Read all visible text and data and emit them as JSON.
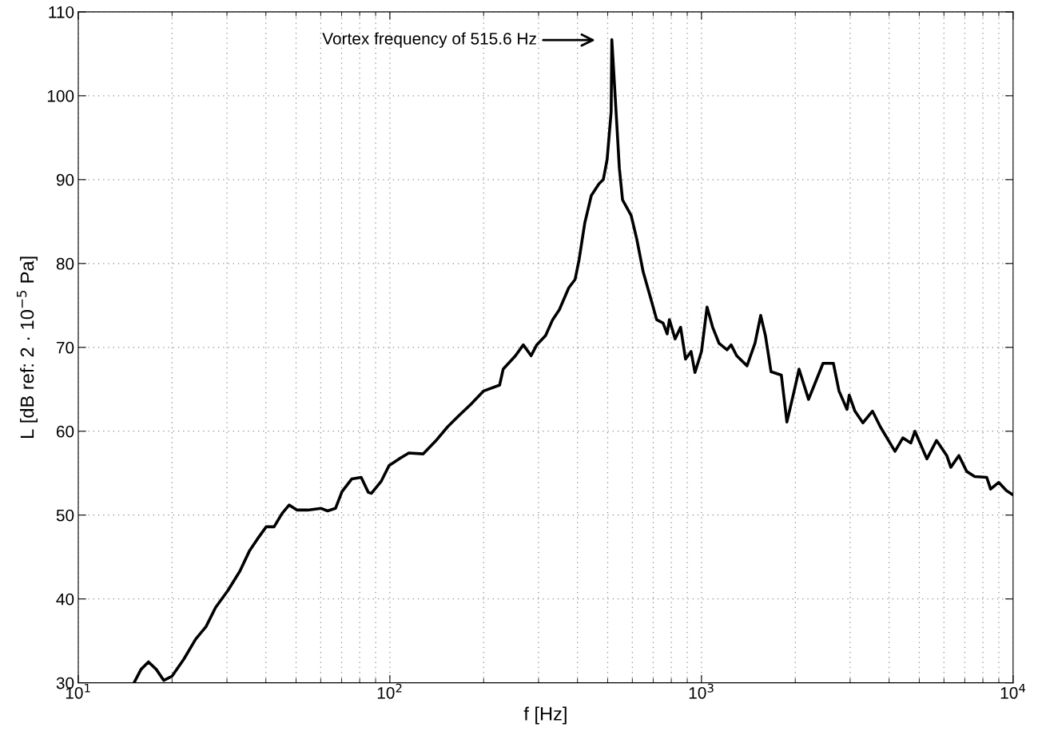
{
  "chart_data": {
    "type": "line",
    "xlabel": "f [Hz]",
    "ylabel": "L [dB ref: 2 · 10$^{−5}$ Pa]",
    "log": "x",
    "grid": true,
    "marker": "none",
    "line_style": "solid",
    "xlim": [
      10,
      10000
    ],
    "ylim": [
      30,
      110
    ],
    "xticks": [
      {
        "value": 10,
        "label": "10$^{1}$"
      },
      {
        "value": 100,
        "label": "10$^{2}$"
      },
      {
        "value": 1000,
        "label": "10$^{3}$"
      },
      {
        "value": 10000,
        "label": "10$^{4}$"
      }
    ],
    "yticks": [
      30,
      40,
      50,
      60,
      70,
      80,
      90,
      100,
      110
    ],
    "annotations": [
      "Vortex frequency of 515.6 Hz"
    ],
    "series": [
      {
        "color": "#000000",
        "x": [
          15.1,
          15.9,
          16.8,
          17.8,
          18.8,
          20.0,
          21.8,
          23.8,
          25.7,
          27.6,
          30.2,
          33.0,
          35.4,
          37.5,
          40.1,
          42.5,
          45.1,
          47.5,
          50.4,
          54.5,
          60.2,
          63.1,
          66.9,
          70.2,
          75.4,
          80.9,
          85.3,
          87.3,
          93.7,
          99.4,
          107,
          115,
          128,
          140,
          153,
          167,
          183,
          200,
          225,
          231,
          253,
          268,
          284,
          296,
          316,
          333,
          350,
          375,
          393,
          405,
          422,
          443,
          469,
          484,
          498,
          513,
          515.6,
          532,
          545,
          558,
          595,
          620,
          650,
          689,
          718,
          753,
          776,
          789,
          823,
          857,
          889,
          926,
          953,
          1000,
          1042,
          1086,
          1138,
          1208,
          1245,
          1297,
          1400,
          1485,
          1549,
          1604,
          1672,
          1804,
          1880,
          1995,
          2056,
          2206,
          2455,
          2650,
          2763,
          2931,
          2980,
          3107,
          3296,
          3538,
          3753,
          4178,
          4428,
          4698,
          4840,
          5289,
          5678,
          6125,
          6310,
          6700,
          7100,
          7530,
          8230,
          8470,
          8990,
          9530,
          10000
        ],
        "values": [
          30.0,
          31.6,
          32.5,
          31.6,
          30.3,
          30.8,
          32.8,
          35.2,
          36.7,
          39.0,
          41.0,
          43.3,
          45.7,
          47.1,
          48.6,
          48.6,
          50.2,
          51.2,
          50.6,
          50.6,
          50.8,
          50.5,
          50.8,
          52.8,
          54.3,
          54.5,
          52.7,
          52.6,
          54.0,
          55.9,
          56.7,
          57.4,
          57.3,
          58.8,
          60.5,
          61.9,
          63.3,
          64.8,
          65.5,
          67.4,
          69.0,
          70.3,
          69.0,
          70.3,
          71.4,
          73.3,
          74.5,
          77.1,
          78.1,
          80.5,
          84.8,
          88.1,
          89.5,
          90.0,
          92.4,
          98.1,
          106.7,
          98.1,
          91.4,
          87.6,
          85.7,
          82.9,
          79.0,
          75.7,
          73.3,
          72.9,
          71.6,
          73.3,
          71.0,
          72.4,
          68.6,
          69.5,
          67.0,
          69.5,
          74.8,
          72.4,
          70.5,
          69.7,
          70.3,
          69.0,
          67.8,
          70.5,
          73.8,
          71.4,
          67.1,
          66.7,
          61.1,
          65.2,
          67.4,
          63.8,
          68.1,
          68.1,
          64.8,
          62.6,
          64.3,
          62.4,
          61.0,
          62.4,
          60.5,
          57.6,
          59.2,
          58.6,
          60.0,
          56.7,
          58.9,
          57.1,
          55.7,
          57.1,
          55.2,
          54.6,
          54.5,
          53.1,
          53.9,
          52.9,
          52.4
        ]
      }
    ]
  }
}
